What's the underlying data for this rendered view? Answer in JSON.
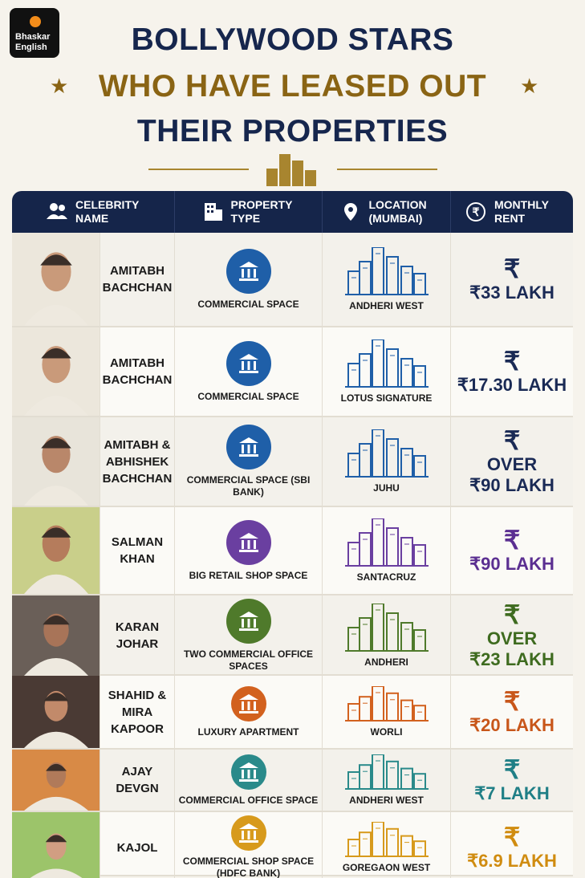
{
  "logo": "Bhaskar English",
  "title": {
    "line1": "BOLLYWOOD STARS",
    "line2": "WHO HAVE LEASED OUT",
    "line3": "THEIR PROPERTIES"
  },
  "table": {
    "headers": [
      "CELEBRITY NAME",
      "PROPERTY TYPE",
      "LOCATION (MUMBAI)",
      "MONTHLY RENT"
    ],
    "rows": [
      {
        "name": "AMITABH BACHCHAN",
        "property": "COMMERCIAL SPACE",
        "location": "ANDHERI WEST",
        "rent": "₹33 LAKH",
        "color": "#1f5fa8",
        "rent_color": "#1a2a55"
      },
      {
        "name": "AMITABH BACHCHAN",
        "property": "COMMERCIAL SPACE",
        "location": "LOTUS SIGNATURE",
        "rent": "₹17.30 LAKH",
        "color": "#1f5fa8",
        "rent_color": "#1a2a55"
      },
      {
        "name": "AMITABH & ABHISHEK BACHCHAN",
        "property": "COMMERCIAL SPACE (SBI BANK)",
        "location": "JUHU",
        "rent_note": "OVER",
        "rent": "₹90 LAKH",
        "color": "#1f5fa8",
        "rent_color": "#1a2a55"
      },
      {
        "name": "SALMAN KHAN",
        "property": "BIG RETAIL SHOP SPACE",
        "location": "SANTACRUZ",
        "rent": "₹90 LAKH",
        "color": "#6a3fa0",
        "rent_color": "#5b2f91"
      },
      {
        "name": "KARAN JOHAR",
        "property": "TWO COMMERCIAL OFFICE SPACES",
        "location": "ANDHERI",
        "rent_note": "OVER",
        "rent": "₹23 LAKH",
        "color": "#4f7a2b",
        "rent_color": "#3e6b1f"
      },
      {
        "name": "SHAHID & MIRA KAPOOR",
        "property": "LUXURY APARTMENT",
        "location": "WORLI",
        "rent": "₹20 LAKH",
        "color": "#d2611e",
        "rent_color": "#c8561a"
      },
      {
        "name": "AJAY DEVGN",
        "property": "COMMERCIAL OFFICE SPACE",
        "location": "ANDHERI WEST",
        "rent": "₹7 LAKH",
        "color": "#2a8a8a",
        "rent_color": "#1f7f86"
      },
      {
        "name": "KAJOL",
        "property": "COMMERCIAL SHOP SPACE (HDFC BANK)",
        "location": "GOREGAON WEST",
        "rent": "₹6.9 LAKH",
        "color": "#d79a1c",
        "rent_color": "#d08c10"
      }
    ]
  }
}
